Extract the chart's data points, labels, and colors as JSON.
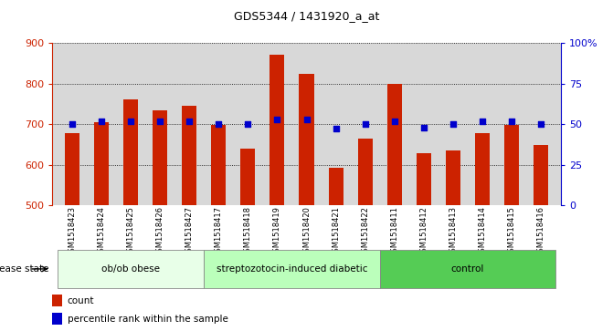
{
  "title": "GDS5344 / 1431920_a_at",
  "samples": [
    "GSM1518423",
    "GSM1518424",
    "GSM1518425",
    "GSM1518426",
    "GSM1518427",
    "GSM1518417",
    "GSM1518418",
    "GSM1518419",
    "GSM1518420",
    "GSM1518421",
    "GSM1518422",
    "GSM1518411",
    "GSM1518412",
    "GSM1518413",
    "GSM1518414",
    "GSM1518415",
    "GSM1518416"
  ],
  "counts": [
    678,
    705,
    762,
    733,
    745,
    697,
    640,
    872,
    825,
    593,
    665,
    800,
    628,
    635,
    678,
    697,
    648
  ],
  "percentile_ranks": [
    50,
    52,
    52,
    52,
    52,
    50,
    50,
    53,
    53,
    47,
    50,
    52,
    48,
    50,
    52,
    52,
    50
  ],
  "groups": [
    {
      "name": "ob/ob obese",
      "start": 0,
      "end": 5
    },
    {
      "name": "streptozotocin-induced diabetic",
      "start": 5,
      "end": 11
    },
    {
      "name": "control",
      "start": 11,
      "end": 17
    }
  ],
  "group_colors": [
    "#e8ffe8",
    "#bbffbb",
    "#55cc55"
  ],
  "ylim": [
    500,
    900
  ],
  "ybase": 500,
  "yticks": [
    500,
    600,
    700,
    800,
    900
  ],
  "bar_color": "#cc2200",
  "dot_color": "#0000cc",
  "right_yticks": [
    0,
    25,
    50,
    75,
    100
  ],
  "right_ylabels": [
    "0",
    "25",
    "50",
    "75",
    "100%"
  ],
  "plot_bg_color": "#d8d8d8",
  "disease_state_label": "disease state"
}
